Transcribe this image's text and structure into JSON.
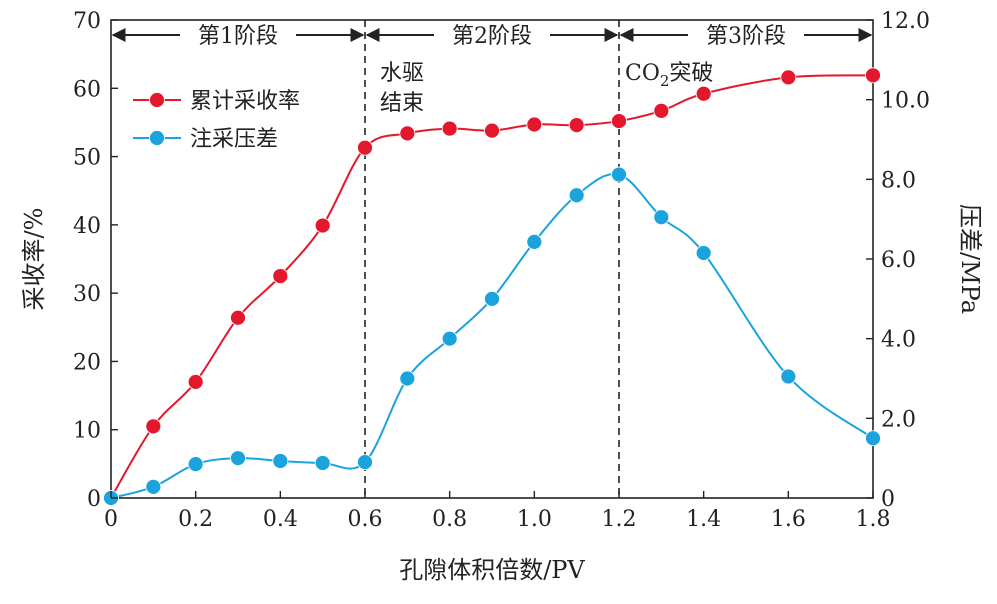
{
  "chart_data": {
    "type": "line",
    "xlabel": "孔隙体积倍数/PV",
    "ylabel_left": "采收率/%",
    "ylabel_right": "压差/MPa",
    "xlim": [
      0,
      1.8
    ],
    "ylim_left": [
      0,
      70
    ],
    "ylim_right": [
      0,
      12
    ],
    "x_ticks": [
      "0",
      "0.2",
      "0.4",
      "0.6",
      "0.8",
      "1.0",
      "1.2",
      "1.4",
      "1.6",
      "1.8"
    ],
    "y_left_ticks": [
      "0",
      "10",
      "20",
      "30",
      "40",
      "50",
      "60",
      "70"
    ],
    "y_right_ticks": [
      "0",
      "2.0",
      "4.0",
      "6.0",
      "8.0",
      "10.0",
      "12.0"
    ],
    "grid": false,
    "legend_position": "top-left",
    "stages": [
      {
        "label": "第1阶段",
        "from": 0,
        "to": 0.6
      },
      {
        "label": "第2阶段",
        "from": 0.6,
        "to": 1.2
      },
      {
        "label": "第3阶段",
        "from": 1.2,
        "to": 1.8
      }
    ],
    "dividers": [
      0.6,
      1.2
    ],
    "annotations": {
      "water_end_line1": "水驱",
      "water_end_line2": "结束",
      "co2_prefix": "CO",
      "co2_sub": "2",
      "co2_suffix": "突破"
    },
    "series": [
      {
        "name": "累计采收率",
        "axis": "left",
        "color": "#e3182d",
        "x": [
          0,
          0.1,
          0.2,
          0.3,
          0.4,
          0.5,
          0.6,
          0.7,
          0.8,
          0.9,
          1.0,
          1.1,
          1.2,
          1.3,
          1.4,
          1.6,
          1.8
        ],
        "values": [
          0,
          10.5,
          17.0,
          26.4,
          32.5,
          39.9,
          51.3,
          53.4,
          54.1,
          53.8,
          54.7,
          54.6,
          55.2,
          56.7,
          59.2,
          61.6,
          61.9
        ]
      },
      {
        "name": "注采压差",
        "axis": "right",
        "color": "#1aa3dd",
        "x": [
          0,
          0.1,
          0.2,
          0.3,
          0.4,
          0.5,
          0.6,
          0.7,
          0.8,
          0.9,
          1.0,
          1.1,
          1.2,
          1.3,
          1.4,
          1.6,
          1.8
        ],
        "values": [
          0,
          0.28,
          0.85,
          1.0,
          0.93,
          0.88,
          0.9,
          3.0,
          4.0,
          5.0,
          6.43,
          7.6,
          8.12,
          7.05,
          6.15,
          3.05,
          1.5
        ]
      }
    ]
  }
}
